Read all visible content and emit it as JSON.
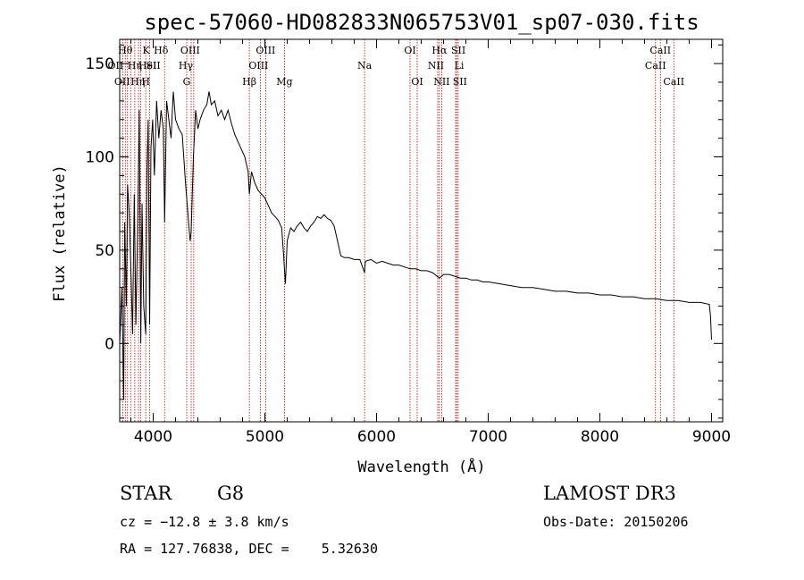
{
  "chart_data": {
    "type": "line",
    "title": "spec-57060-HD082833N065753V01_sp07-030.fits",
    "xlabel": "Wavelength (Å)",
    "ylabel": "Flux (relative)",
    "xlim": [
      3700,
      9100
    ],
    "ylim": [
      -42,
      163
    ],
    "xticks": [
      4000,
      5000,
      6000,
      7000,
      8000,
      9000
    ],
    "yticks": [
      0,
      50,
      100,
      150
    ],
    "xtick_labels": [
      "4000",
      "5000",
      "6000",
      "7000",
      "8000",
      "9000"
    ],
    "ytick_labels": [
      "0",
      "50",
      "100",
      "150"
    ],
    "grid": false,
    "series": [
      {
        "color": "#000000",
        "points": [
          [
            3700,
            0
          ],
          [
            3720,
            30
          ],
          [
            3735,
            -30
          ],
          [
            3745,
            65
          ],
          [
            3760,
            20
          ],
          [
            3770,
            85
          ],
          [
            3785,
            70
          ],
          [
            3800,
            40
          ],
          [
            3815,
            5
          ],
          [
            3830,
            80
          ],
          [
            3845,
            10
          ],
          [
            3860,
            60
          ],
          [
            3875,
            125
          ],
          [
            3889,
            0
          ],
          [
            3900,
            75
          ],
          [
            3915,
            20
          ],
          [
            3933,
            5
          ],
          [
            3945,
            95
          ],
          [
            3955,
            120
          ],
          [
            3968,
            10
          ],
          [
            3980,
            105
          ],
          [
            3995,
            120
          ],
          [
            4010,
            90
          ],
          [
            4030,
            130
          ],
          [
            4050,
            110
          ],
          [
            4070,
            125
          ],
          [
            4090,
            115
          ],
          [
            4102,
            65
          ],
          [
            4120,
            130
          ],
          [
            4140,
            120
          ],
          [
            4160,
            110
          ],
          [
            4180,
            135
          ],
          [
            4200,
            120
          ],
          [
            4230,
            115
          ],
          [
            4260,
            112
          ],
          [
            4290,
            85
          ],
          [
            4310,
            70
          ],
          [
            4330,
            55
          ],
          [
            4340,
            60
          ],
          [
            4360,
            100
          ],
          [
            4380,
            125
          ],
          [
            4400,
            115
          ],
          [
            4420,
            120
          ],
          [
            4450,
            125
          ],
          [
            4480,
            128
          ],
          [
            4500,
            135
          ],
          [
            4520,
            128
          ],
          [
            4550,
            130
          ],
          [
            4580,
            122
          ],
          [
            4610,
            125
          ],
          [
            4640,
            120
          ],
          [
            4670,
            125
          ],
          [
            4700,
            118
          ],
          [
            4730,
            112
          ],
          [
            4760,
            108
          ],
          [
            4790,
            104
          ],
          [
            4820,
            100
          ],
          [
            4850,
            92
          ],
          [
            4861,
            80
          ],
          [
            4880,
            92
          ],
          [
            4910,
            86
          ],
          [
            4940,
            82
          ],
          [
            4970,
            80
          ],
          [
            5000,
            78
          ],
          [
            5030,
            74
          ],
          [
            5060,
            70
          ],
          [
            5090,
            68
          ],
          [
            5120,
            66
          ],
          [
            5150,
            62
          ],
          [
            5167,
            48
          ],
          [
            5175,
            40
          ],
          [
            5184,
            32
          ],
          [
            5200,
            55
          ],
          [
            5230,
            62
          ],
          [
            5260,
            60
          ],
          [
            5290,
            63
          ],
          [
            5320,
            65
          ],
          [
            5350,
            62
          ],
          [
            5380,
            60
          ],
          [
            5410,
            63
          ],
          [
            5440,
            65
          ],
          [
            5470,
            68
          ],
          [
            5500,
            67
          ],
          [
            5530,
            69
          ],
          [
            5560,
            67
          ],
          [
            5590,
            66
          ],
          [
            5620,
            63
          ],
          [
            5650,
            55
          ],
          [
            5680,
            47
          ],
          [
            5710,
            46
          ],
          [
            5750,
            46
          ],
          [
            5800,
            45
          ],
          [
            5850,
            45
          ],
          [
            5893,
            38
          ],
          [
            5900,
            44
          ],
          [
            5950,
            45
          ],
          [
            6000,
            43
          ],
          [
            6050,
            44
          ],
          [
            6100,
            43
          ],
          [
            6150,
            42
          ],
          [
            6200,
            42
          ],
          [
            6250,
            41
          ],
          [
            6300,
            40
          ],
          [
            6350,
            40
          ],
          [
            6400,
            39
          ],
          [
            6450,
            39
          ],
          [
            6500,
            38
          ],
          [
            6563,
            35
          ],
          [
            6600,
            37
          ],
          [
            6650,
            37
          ],
          [
            6700,
            36
          ],
          [
            6750,
            35
          ],
          [
            6800,
            35
          ],
          [
            6850,
            34
          ],
          [
            6900,
            34
          ],
          [
            6950,
            33
          ],
          [
            7000,
            33
          ],
          [
            7100,
            32
          ],
          [
            7200,
            31
          ],
          [
            7300,
            30
          ],
          [
            7400,
            30
          ],
          [
            7500,
            29
          ],
          [
            7600,
            28
          ],
          [
            7700,
            28
          ],
          [
            7800,
            27
          ],
          [
            7900,
            27
          ],
          [
            8000,
            26
          ],
          [
            8100,
            26
          ],
          [
            8200,
            25
          ],
          [
            8300,
            25
          ],
          [
            8400,
            24
          ],
          [
            8500,
            24
          ],
          [
            8600,
            23
          ],
          [
            8700,
            23
          ],
          [
            8800,
            22
          ],
          [
            8900,
            22
          ],
          [
            8980,
            21
          ],
          [
            8990,
            15
          ],
          [
            9000,
            2
          ]
        ]
      }
    ],
    "line_color": "#c00000",
    "lines": [
      {
        "x": 3727,
        "label": "OII",
        "row": 1,
        "dx": -8
      },
      {
        "x": 3750,
        "label": "Hθ",
        "row": 0,
        "dx": 0
      },
      {
        "x": 3770,
        "label": "OII",
        "row": 2,
        "dx": -6
      },
      {
        "x": 3798,
        "label": "Hη",
        "row": 2,
        "dx": 8
      },
      {
        "x": 3835,
        "label": "Hη",
        "row": 1,
        "dx": 0
      },
      {
        "x": 3869,
        "label": "HeI",
        "row": 1,
        "dx": 10
      },
      {
        "x": 3889,
        "label": "K",
        "row": 0,
        "dx": 6
      },
      {
        "x": 3933,
        "label": "H",
        "row": 2,
        "dx": 0
      },
      {
        "x": 3969,
        "label": "SII",
        "row": 1,
        "dx": 4
      },
      {
        "x": 4102,
        "label": "Hδ",
        "row": 0,
        "dx": -4
      },
      {
        "x": 4300,
        "label": "G",
        "row": 2,
        "dx": 0
      },
      {
        "x": 4340,
        "label": "Hγ",
        "row": 1,
        "dx": -6
      },
      {
        "x": 4363,
        "label": "OIII",
        "row": 0,
        "dx": -4
      },
      {
        "x": 4861,
        "label": "Hβ",
        "row": 2,
        "dx": 0
      },
      {
        "x": 4959,
        "label": "OIII",
        "row": 1,
        "dx": -2
      },
      {
        "x": 5007,
        "label": "OIII",
        "row": 0,
        "dx": 0
      },
      {
        "x": 5175,
        "label": "Mg",
        "row": 2,
        "dx": 0
      },
      {
        "x": 5893,
        "label": "Na",
        "row": 1,
        "dx": 0
      },
      {
        "x": 6300,
        "label": "OI",
        "row": 0,
        "dx": 0
      },
      {
        "x": 6364,
        "label": "OI",
        "row": 2,
        "dx": 0
      },
      {
        "x": 6548,
        "label": "NII",
        "row": 1,
        "dx": -2
      },
      {
        "x": 6563,
        "label": "Hα",
        "row": 0,
        "dx": 0
      },
      {
        "x": 6583,
        "label": "NII",
        "row": 2,
        "dx": 0
      },
      {
        "x": 6708,
        "label": "Li",
        "row": 1,
        "dx": 4
      },
      {
        "x": 6717,
        "label": "SII",
        "row": 0,
        "dx": 2
      },
      {
        "x": 6731,
        "label": "SII",
        "row": 2,
        "dx": 2
      },
      {
        "x": 8498,
        "label": "CaII",
        "row": 1,
        "dx": 0
      },
      {
        "x": 8542,
        "label": "CaII",
        "row": 0,
        "dx": 0
      },
      {
        "x": 8662,
        "label": "CaII",
        "row": 2,
        "dx": 0
      }
    ]
  },
  "info": {
    "object_class": "STAR",
    "subclass": "G8",
    "survey": "LAMOST DR3",
    "redshift": "cz = −12.8 ± 3.8 km/s",
    "obs_date": "Obs-Date: 20150206",
    "coords": "RA = 127.76838, DEC =    5.32630"
  }
}
